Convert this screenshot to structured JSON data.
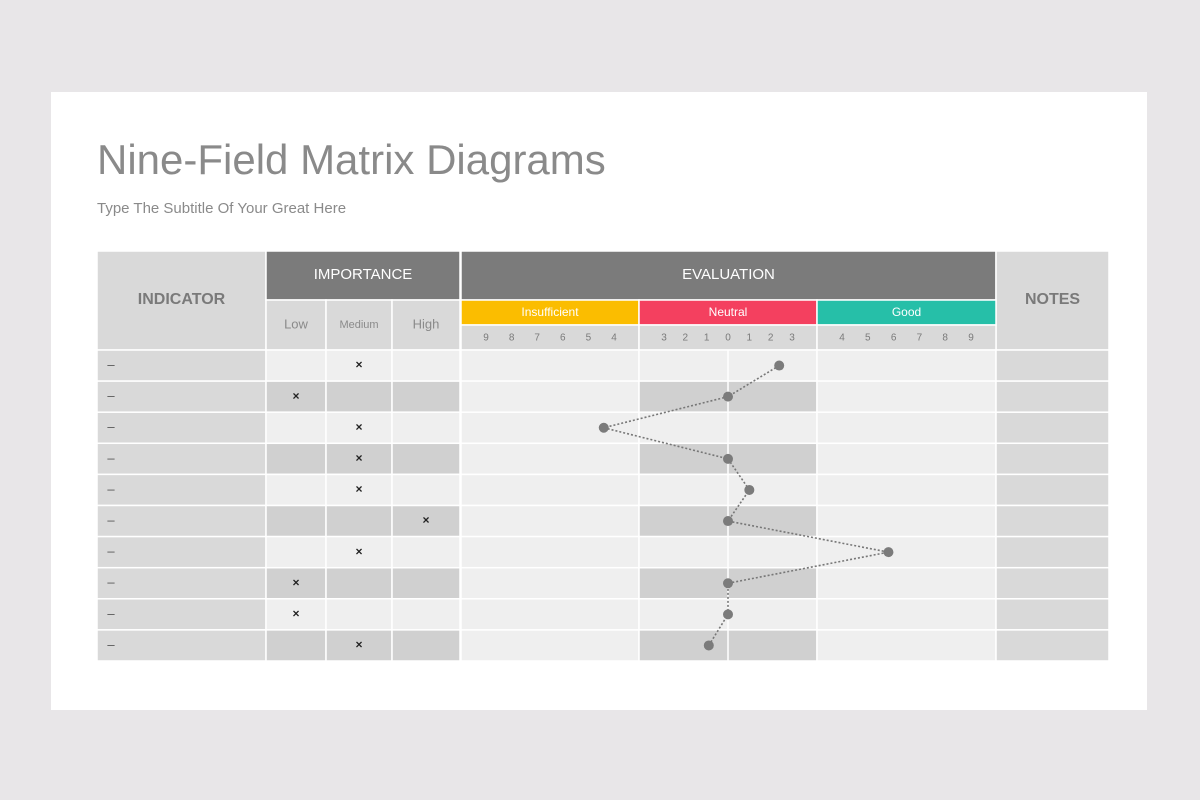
{
  "header": {
    "title": "Nine-Field Matrix Diagrams",
    "subtitle": "Type The Subtitle Of Your Great Here"
  },
  "table": {
    "columns": {
      "indicator": "INDICATOR",
      "importance": "IMPORTANCE",
      "levels": [
        "Low",
        "Medium",
        "High"
      ],
      "evaluation": "EVALUATION",
      "notes": "NOTES"
    },
    "scale": {
      "sections": [
        {
          "name": "Insufficient",
          "color": "#fbbd00",
          "ticks": [
            {
              "value": -9,
              "label": "9"
            },
            {
              "value": -8,
              "label": "8"
            },
            {
              "value": -7,
              "label": "7"
            },
            {
              "value": -6,
              "label": "6"
            },
            {
              "value": -5,
              "label": "5"
            },
            {
              "value": -4,
              "label": "4"
            }
          ]
        },
        {
          "name": "Neutral",
          "color": "#f4405f",
          "ticks": [
            {
              "value": -3,
              "label": "3"
            },
            {
              "value": -2,
              "label": "2"
            },
            {
              "value": -1,
              "label": "1"
            },
            0,
            1,
            2,
            3
          ]
        },
        {
          "name": "Good",
          "color": "#26bfa8",
          "ticks": [
            4,
            5,
            6,
            7,
            8,
            9
          ]
        }
      ]
    },
    "rows": [
      {
        "indicator": "–",
        "importance": "Medium",
        "mark": "×",
        "evaluation": 2.4
      },
      {
        "indicator": "–",
        "importance": "Low",
        "mark": "×",
        "evaluation": 0
      },
      {
        "indicator": "–",
        "importance": "Medium",
        "mark": "×",
        "evaluation": -4.4
      },
      {
        "indicator": "–",
        "importance": "Medium",
        "mark": "×",
        "evaluation": 0
      },
      {
        "indicator": "–",
        "importance": "Medium",
        "mark": "×",
        "evaluation": 1
      },
      {
        "indicator": "–",
        "importance": "High",
        "mark": "×",
        "evaluation": 0
      },
      {
        "indicator": "–",
        "importance": "Medium",
        "mark": "×",
        "evaluation": 5.8
      },
      {
        "indicator": "–",
        "importance": "Low",
        "mark": "×",
        "evaluation": 0
      },
      {
        "indicator": "–",
        "importance": "Low",
        "mark": "×",
        "evaluation": 0
      },
      {
        "indicator": "–",
        "importance": "Medium",
        "mark": "×",
        "evaluation": -0.9
      }
    ]
  }
}
